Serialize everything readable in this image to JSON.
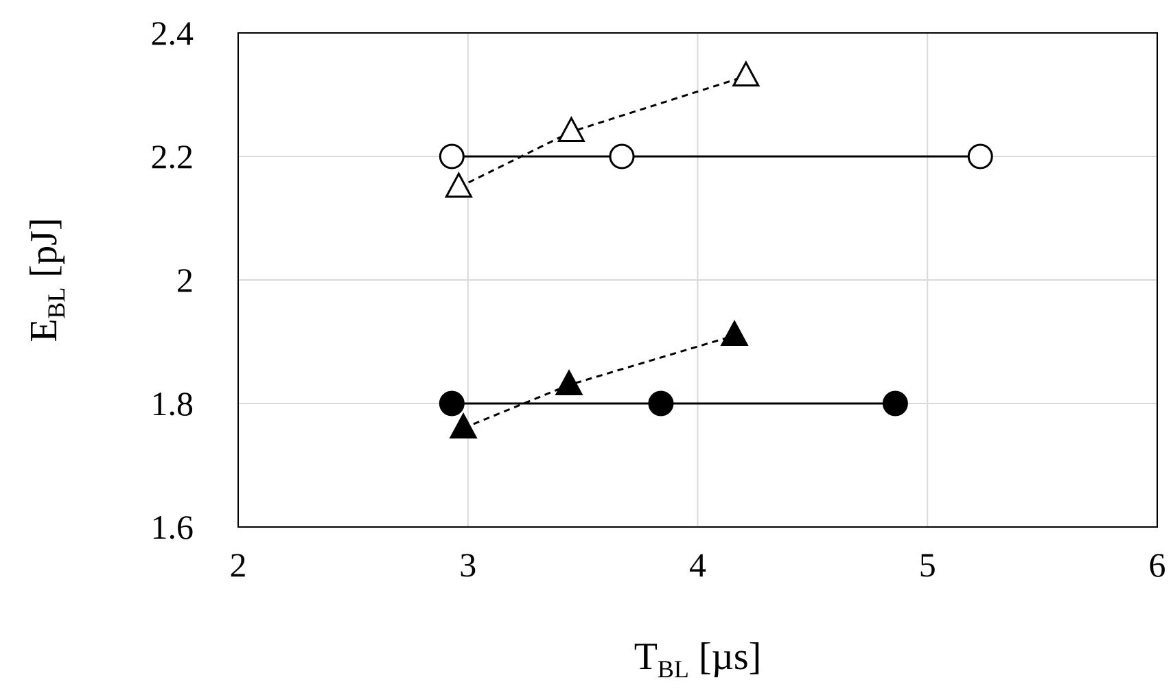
{
  "chart_data": {
    "type": "scatter",
    "xlabel": {
      "main": "T",
      "sub": "BL",
      "unit": " [µs]"
    },
    "ylabel": {
      "main": "E",
      "sub": "BL",
      "unit": " [pJ]"
    },
    "xlim": [
      2,
      6
    ],
    "ylim": [
      1.6,
      2.4
    ],
    "x_ticks": [
      "2",
      "3",
      "4",
      "5",
      "6"
    ],
    "y_ticks": [
      "1.6",
      "1.8",
      "2",
      "2.2",
      "2.4"
    ],
    "grid": true,
    "legend": "none",
    "series": [
      {
        "marker": "circle-open",
        "line": "solid",
        "x": [
          2.93,
          3.67,
          5.23
        ],
        "y": [
          2.2,
          2.2,
          2.2
        ]
      },
      {
        "marker": "triangle-open",
        "line": "dashed",
        "x": [
          2.96,
          3.45,
          4.21
        ],
        "y": [
          2.15,
          2.24,
          2.33
        ]
      },
      {
        "marker": "circle-filled",
        "line": "solid",
        "x": [
          2.93,
          3.84,
          4.86
        ],
        "y": [
          1.8,
          1.8,
          1.8
        ]
      },
      {
        "marker": "triangle-filled",
        "line": "dashed",
        "x": [
          2.98,
          3.44,
          4.16
        ],
        "y": [
          1.76,
          1.83,
          1.91
        ]
      }
    ]
  }
}
